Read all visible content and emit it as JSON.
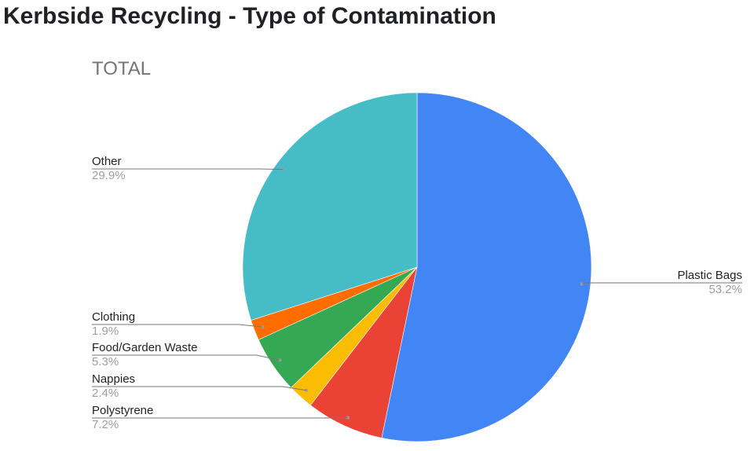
{
  "page": {
    "title": "Kerbside Recycling - Type of Contamination"
  },
  "chart_data": {
    "type": "pie",
    "title": "TOTAL",
    "slices": [
      {
        "label": "Plastic Bags",
        "value": 53.2,
        "value_label": "53.2%",
        "color": "#4285f4"
      },
      {
        "label": "Polystyrene",
        "value": 7.2,
        "value_label": "7.2%",
        "color": "#ea4335"
      },
      {
        "label": "Nappies",
        "value": 2.4,
        "value_label": "2.4%",
        "color": "#fbbc04"
      },
      {
        "label": "Food/Garden Waste",
        "value": 5.3,
        "value_label": "5.3%",
        "color": "#34a853"
      },
      {
        "label": "Clothing",
        "value": 1.9,
        "value_label": "1.9%",
        "color": "#ff6d01"
      },
      {
        "label": "Other",
        "value": 29.9,
        "value_label": "29.9%",
        "color": "#46bdc6"
      }
    ],
    "start_angle": "12 o'clock",
    "direction": "clockwise",
    "legend": "none",
    "label_style": "leader-lines"
  }
}
